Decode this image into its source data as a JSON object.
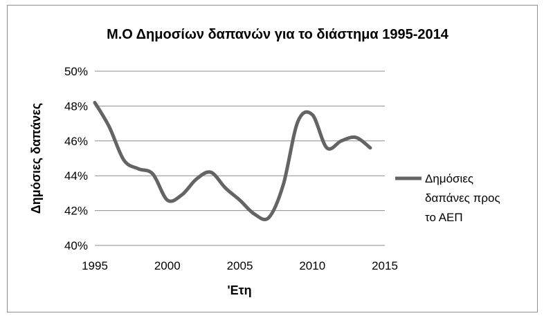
{
  "chart_data": {
    "type": "line",
    "title": "Μ.Ο Δημοσίων δαπανών για το διάστημα 1995-2014",
    "xlabel": "'Ετη",
    "ylabel": "Δημόσιες δαπάνες",
    "xlim": [
      1995,
      2015
    ],
    "ylim": [
      40,
      50
    ],
    "x_ticks": [
      "1995",
      "2000",
      "2005",
      "2010",
      "2015"
    ],
    "y_ticks": [
      "40%",
      "42%",
      "44%",
      "46%",
      "48%",
      "50%"
    ],
    "grid": true,
    "legend_position": "right",
    "series": [
      {
        "name": "Δημόσιες δαπάνες προς το ΑΕΠ",
        "legend_lines": [
          "Δημόσιες",
          "δαπάνες προς",
          "το ΑΕΠ"
        ],
        "color": "#646464",
        "x": [
          1995,
          1996,
          1997,
          1998,
          1999,
          2000,
          2001,
          2002,
          2003,
          2004,
          2005,
          2006,
          2007,
          2008,
          2009,
          2010,
          2011,
          2012,
          2013,
          2014
        ],
        "y": [
          48.2,
          46.8,
          44.9,
          44.4,
          44.1,
          42.6,
          42.9,
          43.8,
          44.2,
          43.3,
          42.6,
          41.8,
          41.6,
          43.5,
          47.1,
          47.5,
          45.6,
          46.0,
          46.2,
          45.6
        ]
      }
    ]
  }
}
